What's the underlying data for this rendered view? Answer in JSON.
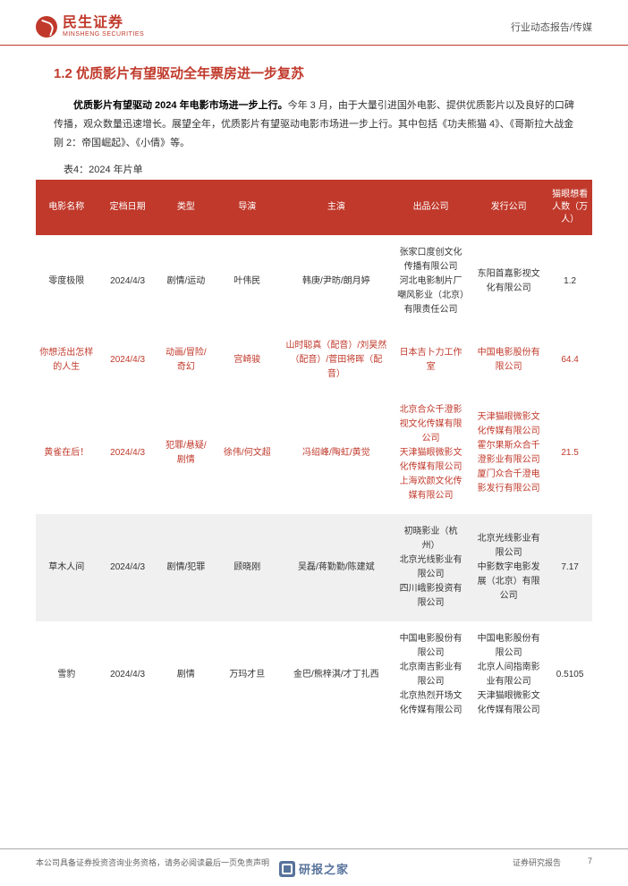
{
  "brand": {
    "cn_name": "民生证券",
    "en_name": "MINSHENG SECURITIES"
  },
  "header": {
    "right_label": "行业动态报告/传媒"
  },
  "section": {
    "title": "1.2 优质影片有望驱动全年票房进一步复苏",
    "paragraph_lead": "优质影片有望驱动 2024 年电影市场进一步上行。",
    "paragraph_rest": "今年 3 月，由于大量引进国外电影、提供优质影片以及良好的口碑传播，观众数量迅速增长。展望全年，优质影片有望驱动电影市场进一步上行。其中包括《功夫熊猫 4》、《哥斯拉大战金刚 2：帝国崛起》、《小倩》等。"
  },
  "table": {
    "caption": "表4：2024 年片单",
    "columns": {
      "name": "电影名称",
      "date": "定档日期",
      "type": "类型",
      "director": "导演",
      "actors": "主演",
      "producer": "出品公司",
      "distributor": "发行公司",
      "want": "猫眼想看人数（万人）"
    },
    "rows": [
      {
        "name": "零度极限",
        "date": "2024/4/3",
        "type": "剧情/运动",
        "director": "叶伟民",
        "actors": "韩庚/尹昉/朗月婷",
        "producer": "张家口度创文化传播有限公司\n河北电影制片厂\n嘲风影业（北京）有限责任公司",
        "distributor": "东阳首嘉影视文化有限公司",
        "want": "1.2",
        "alt": false,
        "red": false
      },
      {
        "name": "你想活出怎样的人生",
        "date": "2024/4/3",
        "type": "动画/冒险/奇幻",
        "director": "宫崎骏",
        "actors": "山时聪真（配音）/刘昊然（配音）/菅田将晖（配音）",
        "producer": "日本吉卜力工作室",
        "distributor": "中国电影股份有限公司",
        "want": "64.4",
        "alt": false,
        "red": true
      },
      {
        "name": "黄雀在后！",
        "date": "2024/4/3",
        "type": "犯罪/悬疑/剧情",
        "director": "徐伟/何文超",
        "actors": "冯绍峰/陶虹/黄觉",
        "producer": "北京合众千澄影视文化传媒有限公司\n天津猫眼微影文化传媒有限公司\n上海欢颜文化传媒有限公司",
        "distributor": "天津猫眼微影文化传媒有限公司\n霍尔果斯众合千澄影业有限公司\n厦门众合千澄电影发行有限公司",
        "want": "21.5",
        "alt": false,
        "red": true
      },
      {
        "name": "草木人间",
        "date": "2024/4/3",
        "type": "剧情/犯罪",
        "director": "顾晓刚",
        "actors": "吴磊/蒋勤勤/陈建斌",
        "producer": "初晓影业（杭州）\n北京光线影业有限公司\n四川峨影投资有限公司",
        "distributor": "北京光线影业有限公司\n中影数字电影发展（北京）有限公司",
        "want": "7.17",
        "alt": true,
        "red": false
      },
      {
        "name": "雪豹",
        "date": "2024/4/3",
        "type": "剧情",
        "director": "万玛才旦",
        "actors": "金巴/熊梓淇/才丁扎西",
        "producer": "中国电影股份有限公司\n北京南吉影业有限公司\n北京热烈开场文化传媒有限公司",
        "distributor": "中国电影股份有限公司\n北京人间指南影业有限公司\n天津猫眼微影文化传媒有限公司",
        "want": "0.5105",
        "alt": false,
        "red": false
      }
    ]
  },
  "footer": {
    "left": "本公司具备证券投资咨询业务资格，请务必阅读最后一页免责声明",
    "right_label": "证券研究报告",
    "page": "7"
  },
  "watermark": {
    "text": "研报之家"
  },
  "colors": {
    "brand_red": "#c0392b",
    "row_alt": "#f0f0f0",
    "text": "#333333",
    "footer_text": "#666666",
    "wm_blue": "#3a5a8a"
  }
}
